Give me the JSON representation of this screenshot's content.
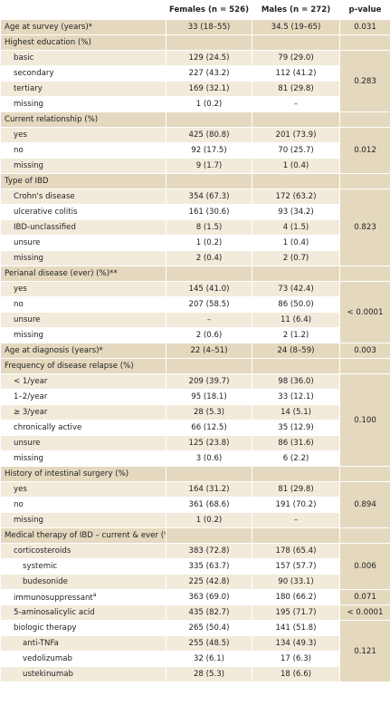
{
  "header": {
    "females": "Females (n = 526)",
    "males": "Males (n = 272)",
    "p_value": "p-value"
  },
  "sections": [
    {
      "label": "Age at survey (years)*",
      "females": "33 (18–55)",
      "males": "34.5 (19–65)",
      "p": "0.031"
    },
    {
      "label": "Highest education (%)",
      "p": "0.283",
      "items": [
        {
          "label": "basic",
          "females": "129 (24.5)",
          "males": "79 (29.0)"
        },
        {
          "label": "secondary",
          "females": "227 (43.2)",
          "males": "112 (41.2)"
        },
        {
          "label": "tertiary",
          "females": "169 (32.1)",
          "males": "81 (29.8)"
        },
        {
          "label": "missing",
          "females": "1 (0.2)",
          "males": "–"
        }
      ]
    },
    {
      "label": "Current relationship (%)",
      "p": "0.012",
      "items": [
        {
          "label": "yes",
          "females": "425 (80.8)",
          "males": "201 (73.9)"
        },
        {
          "label": "no",
          "females": "92 (17.5)",
          "males": "70 (25.7)"
        },
        {
          "label": "missing",
          "females": "9 (1.7)",
          "males": "1 (0.4)"
        }
      ]
    },
    {
      "label": "Type of IBD",
      "p": "0.823",
      "items": [
        {
          "label": "Crohn's disease",
          "females": "354 (67.3)",
          "males": "172 (63.2)"
        },
        {
          "label": "ulcerative colitis",
          "females": "161 (30.6)",
          "males": "93 (34.2)"
        },
        {
          "label": "IBD-unclassified",
          "females": "8 (1.5)",
          "males": "4 (1.5)"
        },
        {
          "label": "unsure",
          "females": "1 (0.2)",
          "males": "1 (0.4)"
        },
        {
          "label": "missing",
          "females": "2 (0.4)",
          "males": "2 (0.7)"
        }
      ]
    },
    {
      "label": "Perianal disease (ever) (%)**",
      "p": "< 0.0001",
      "items": [
        {
          "label": "yes",
          "females": "145 (41.0)",
          "males": "73 (42.4)"
        },
        {
          "label": "no",
          "females": "207 (58.5)",
          "males": "86 (50.0)"
        },
        {
          "label": "unsure",
          "females": "–",
          "males": "11 (6.4)"
        },
        {
          "label": "missing",
          "females": "2 (0.6)",
          "males": "2 (1.2)"
        }
      ]
    },
    {
      "label": "Age at diagnosis (years)*",
      "females": "22 (4–51)",
      "males": "24 (8–59)",
      "p": "0.003"
    },
    {
      "label": "Frequency of disease relapse (%)",
      "p": "0.100",
      "items": [
        {
          "label": "< 1/year",
          "females": "209 (39.7)",
          "males": "98 (36.0)"
        },
        {
          "label": "1–2/year",
          "females": "95 (18.1)",
          "males": "33 (12.1)"
        },
        {
          "label": "≥ 3/year",
          "females": "28 (5.3)",
          "males": "14 (5.1)"
        },
        {
          "label": "chronically active",
          "females": "66 (12.5)",
          "males": "35 (12.9)"
        },
        {
          "label": "unsure",
          "females": "125 (23.8)",
          "males": "86 (31.6)"
        },
        {
          "label": "missing",
          "females": "3 (0.6)",
          "males": "6 (2.2)"
        }
      ]
    },
    {
      "label": "History of intestinal surgery (%)",
      "p": "0.894",
      "items": [
        {
          "label": "yes",
          "females": "164 (31.2)",
          "males": "81 (29.8)"
        },
        {
          "label": "no",
          "females": "361 (68.6)",
          "males": "191 (70.2)"
        },
        {
          "label": "missing",
          "females": "1 (0.2)",
          "males": "–"
        }
      ]
    },
    {
      "label": "Medical therapy of IBD – current & ever (%)",
      "items": [
        {
          "label": "corticosteroids",
          "females": "383 (72.8)",
          "males": "178 (65.4)",
          "p": "0.006",
          "items": [
            {
              "label": "systemic",
              "females": "335 (63.7)",
              "males": "157 (57.7)"
            },
            {
              "label": "budesonide",
              "females": "225 (42.8)",
              "males": "90 (33.1)"
            }
          ]
        },
        {
          "label": "immunosuppressant",
          "label_note": "a",
          "females": "363 (69.0)",
          "males": "180 (66.2)",
          "p": "0.071"
        },
        {
          "label": "5-aminosalicylic acid",
          "females": "435 (82.7)",
          "males": "195 (71.7)",
          "p": "< 0.0001"
        },
        {
          "label": "biologic therapy",
          "females": "265 (50.4)",
          "males": "141 (51.8)",
          "p": "0.121",
          "items": [
            {
              "label": "anti-TNFa",
              "females": "255 (48.5)",
              "males": "134 (49.3)"
            },
            {
              "label": "vedolizumab",
              "females": "32 (6.1)",
              "males": "17 (6.3)"
            },
            {
              "label": "ustekinumab",
              "females": "28 (5.3)",
              "males": "18 (6.6)"
            }
          ]
        }
      ]
    }
  ]
}
